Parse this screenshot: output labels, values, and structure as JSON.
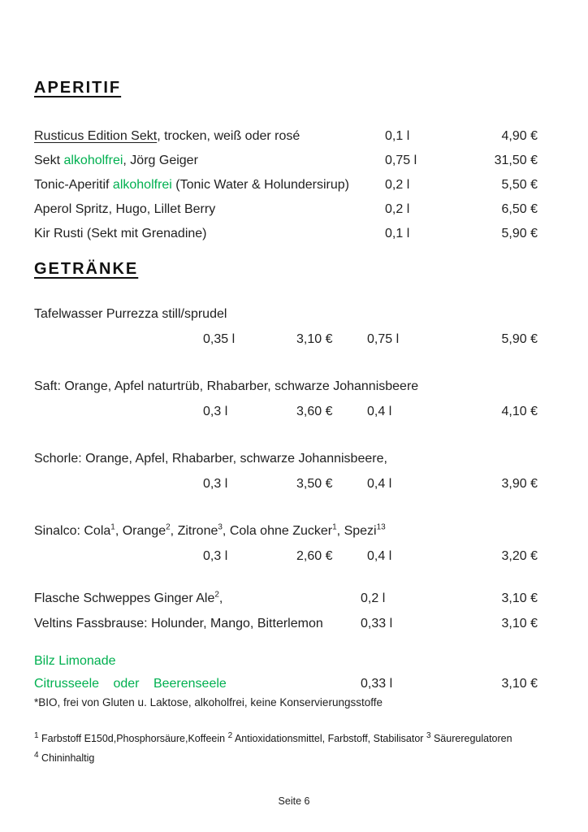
{
  "colors": {
    "green": "#00B050"
  },
  "aperitif": {
    "heading": "APERITIF",
    "items": [
      {
        "name": [
          {
            "t": "Rusticus Edition Sekt",
            "u": true
          },
          {
            "t": ", trocken, weiß oder rosé"
          }
        ],
        "volume": "0,1 l",
        "price": "4,90 €"
      },
      {
        "name": [
          {
            "t": "Sekt "
          },
          {
            "t": "alkoholfrei",
            "green": true
          },
          {
            "t": ", Jörg Geiger"
          }
        ],
        "volume": "0,75 l",
        "price": "31,50 €"
      },
      {
        "name": [
          {
            "t": "Tonic-Aperitif "
          },
          {
            "t": "alkoholfrei",
            "green": true
          },
          {
            "t": " (Tonic Water & Holundersirup)"
          }
        ],
        "volume": "0,2 l",
        "price": "5,50 €"
      },
      {
        "name": [
          {
            "t": "Aperol Spritz, Hugo, Lillet Berry"
          }
        ],
        "volume": "0,2 l",
        "price": "6,50 €"
      },
      {
        "name": [
          {
            "t": "Kir Rusti  (Sekt mit Grenadine)"
          }
        ],
        "volume": "0,1 l",
        "price": "5,90 €"
      }
    ]
  },
  "getraenke": {
    "heading": "GETRÄNKE",
    "groups": [
      {
        "name": [
          {
            "t": "Tafelwasser Purrezza still/sprudel"
          }
        ],
        "vol1": "0,35 l",
        "price1": "3,10 €",
        "vol2": "0,75 l",
        "price2": "5,90 €"
      },
      {
        "name": [
          {
            "t": "Saft: Orange, Apfel naturtrüb, Rhabarber, schwarze Johannisbeere"
          }
        ],
        "vol1": "0,3 l",
        "price1": "3,60 €",
        "vol2": "0,4 l",
        "price2": "4,10 €"
      },
      {
        "name": [
          {
            "t": "Schorle: Orange, Apfel, Rhabarber, schwarze Johannisbeere,"
          }
        ],
        "vol1": "0,3 l",
        "price1": "3,50 €",
        "vol2": "0,4 l",
        "price2": "3,90 €"
      },
      {
        "name": [
          {
            "t": "Sinalco: Cola"
          },
          {
            "t": "1",
            "sup": true
          },
          {
            "t": ", Orange"
          },
          {
            "t": "2",
            "sup": true
          },
          {
            "t": ", Zitrone"
          },
          {
            "t": "3",
            "sup": true
          },
          {
            "t": ", Cola ohne Zucker"
          },
          {
            "t": "1",
            "sup": true
          },
          {
            "t": ", Spezi"
          },
          {
            "t": "13",
            "sup": true
          }
        ],
        "vol1": "0,3 l",
        "price1": "2,60 €",
        "vol2": "0,4 l",
        "price2": "3,20 €"
      }
    ],
    "singles": [
      {
        "name": [
          {
            "t": "Flasche Schweppes Ginger Ale"
          },
          {
            "t": "2",
            "sup": true
          },
          {
            "t": ","
          }
        ],
        "volume": "0,2 l",
        "price": "3,10 €"
      },
      {
        "name": [
          {
            "t": "Veltins Fassbrause: Holunder, Mango, Bitterlemon"
          }
        ],
        "volume": "0,33 l",
        "price": "3,10 €"
      }
    ]
  },
  "bilz": {
    "title": "Bilz Limonade",
    "name": "Citrusseele oder Beerenseele",
    "volume": "0,33 l",
    "price": "3,10 €",
    "bio_note": "*BIO, frei von Gluten u. Laktose, alkoholfrei, keine Konservierungsstoffe"
  },
  "footnotes": {
    "line1": [
      {
        "t": "1",
        "sup": true
      },
      {
        "t": " Farbstoff E150d,Phosphorsäure,Koffeein "
      },
      {
        "t": "2",
        "sup": true
      },
      {
        "t": " Antioxidationsmittel, Farbstoff, Stabilisator "
      },
      {
        "t": "3",
        "sup": true
      },
      {
        "t": " Säureregulatoren"
      }
    ],
    "line2": [
      {
        "t": "4",
        "sup": true
      },
      {
        "t": " Chininhaltig"
      }
    ]
  },
  "footer": {
    "page_label": "Seite 6"
  }
}
